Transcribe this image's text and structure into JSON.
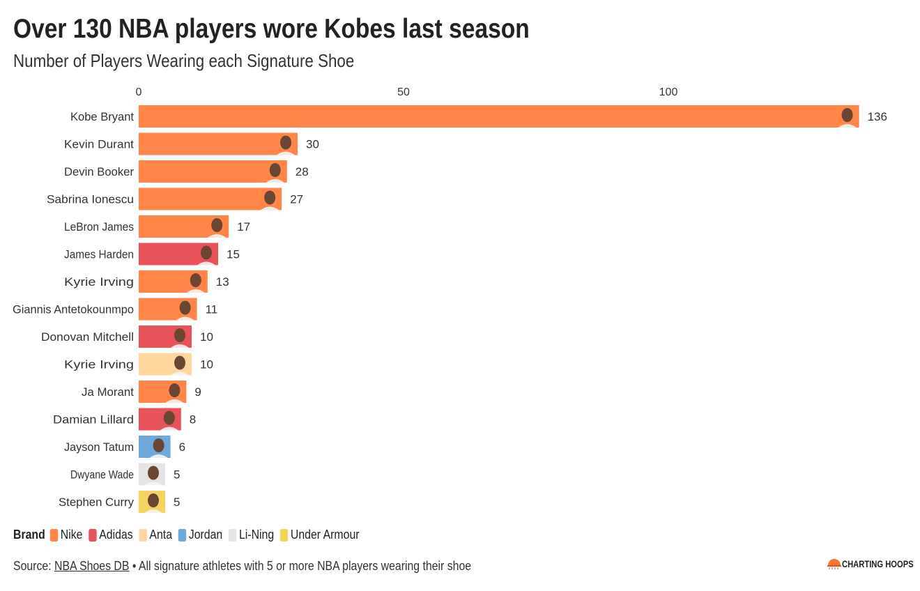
{
  "title": "Over 130 NBA players wore Kobes last season",
  "subtitle": "Number of Players Wearing each Signature Shoe",
  "brand_colors": {
    "Nike": "#FF8549",
    "Adidas": "#E8525A",
    "Anta": "#FDD79E",
    "Jordan": "#6FA8DC",
    "Li-Ning": "#E4E4E4",
    "Under Armour": "#F3D55E"
  },
  "chart_data": {
    "type": "bar",
    "orientation": "horizontal",
    "x_ticks": [
      0,
      50,
      100
    ],
    "xlim": [
      0,
      136
    ],
    "grid": false,
    "categories": [
      "Kobe Bryant",
      "Kevin Durant",
      "Devin Booker",
      "Sabrina Ionescu",
      "LeBron James",
      "James Harden",
      "Kyrie Irving",
      "Giannis Antetokounmpo",
      "Donovan Mitchell",
      "Kyrie Irving",
      "Ja Morant",
      "Damian Lillard",
      "Jayson Tatum",
      "Dwyane Wade",
      "Stephen Curry"
    ],
    "values": [
      136,
      30,
      28,
      27,
      17,
      15,
      13,
      11,
      10,
      10,
      9,
      8,
      6,
      5,
      5
    ],
    "brands": [
      "Nike",
      "Nike",
      "Nike",
      "Nike",
      "Nike",
      "Adidas",
      "Nike",
      "Nike",
      "Adidas",
      "Anta",
      "Nike",
      "Adidas",
      "Jordan",
      "Li-Ning",
      "Under Armour"
    ],
    "legend_placement": "bottom-left"
  },
  "legend": {
    "title": "Brand",
    "items": [
      "Nike",
      "Adidas",
      "Anta",
      "Jordan",
      "Li-Ning",
      "Under Armour"
    ]
  },
  "source": {
    "prefix": "Source: ",
    "link": "NBA Shoes DB",
    "note": " • All signature athletes with 5 or more NBA players wearing their shoe"
  },
  "logo": "CHARTING HOOPS"
}
